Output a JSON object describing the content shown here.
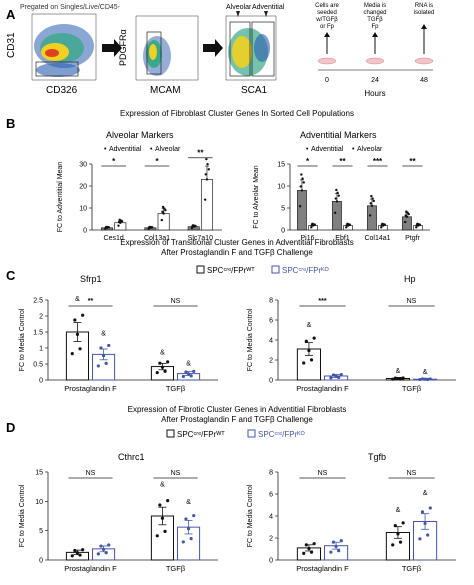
{
  "panels": {
    "a": {
      "letter": "A",
      "gating_label": "Pregated on Singles/Live/CD45-",
      "plot1": {
        "y": "CD31",
        "x": "CD326"
      },
      "plot2": {
        "y": "PDGFRα",
        "x": "MCAM"
      },
      "plot3": {
        "x": "SCA1",
        "gate_left": "Alveolar",
        "gate_right": "Adventitial"
      },
      "timeline": {
        "step1": [
          "Cells are",
          "seeded",
          "w/TGFβ",
          "or Fp"
        ],
        "step2": [
          "Media is",
          "changed",
          "TGFβ",
          "Fp"
        ],
        "step3": [
          "RNA is",
          "isolated"
        ],
        "ticks": [
          "0",
          "24",
          "48"
        ],
        "axis_label": "Hours"
      }
    },
    "b": {
      "letter": "B",
      "title": "Expression of Fibroblast Cluster Genes In Sorted Cell Populations"
    },
    "c": {
      "letter": "C",
      "title": [
        "Expression of Transitional Cluster Genes in Adventitial Fibroblasts",
        "After  Prostaglandin F and TGFβ Challenge"
      ],
      "legend_wt": "SPCᶜʳᵉ/FPrᵂᵀ",
      "legend_ko": "SPCᶜʳᵉ/FPrᴷᴼ"
    },
    "d": {
      "letter": "D",
      "title": [
        "Expression of Fibrotic Cluster Genes in Adventitial Fibroblasts",
        "After  Prostaglandin F and TGFβ Challenge"
      ],
      "legend_wt": "SPCᶜʳᵉ/FPrᵂᵀ",
      "legend_ko": "SPCᶜʳᵉ/FPrᴷᴼ"
    }
  },
  "colors": {
    "dark_bar": "#808080",
    "wt": "#111111",
    "ko": "#4455aa"
  },
  "chart_data": [
    {
      "id": "b-left",
      "type": "bar",
      "title": "Alveolar Markers",
      "ylabel": "FC to Adventitial Mean",
      "categories": [
        "Ces1d",
        "Col13a1",
        "Slc7a10"
      ],
      "ylim": [
        0,
        30
      ],
      "yticks": [
        0,
        10,
        20,
        30
      ],
      "series": [
        {
          "name": "Adventitial",
          "values": [
            1,
            1,
            1.5
          ]
        },
        {
          "name": "Alveolar",
          "values": [
            3.3,
            7.5,
            23
          ]
        }
      ],
      "sig": [
        "*",
        "*",
        "**"
      ]
    },
    {
      "id": "b-right",
      "type": "bar",
      "title": "Adventitial Markers",
      "ylabel": "FC to Alveolar Mean",
      "categories": [
        "Pi16",
        "Ebf1",
        "Col14a1",
        "Ptgfr"
      ],
      "ylim": [
        0,
        15
      ],
      "yticks": [
        0,
        5,
        10,
        15
      ],
      "series": [
        {
          "name": "Adventitial",
          "values": [
            9,
            6.5,
            5.5,
            3
          ]
        },
        {
          "name": "Alveolar",
          "values": [
            1,
            1,
            1,
            1
          ]
        }
      ],
      "sig": [
        "*",
        "**",
        "***",
        "**"
      ]
    },
    {
      "id": "c-left",
      "type": "bar",
      "title": "Sfrp1",
      "ylabel": "FC to Media Control",
      "categories": [
        "Prostaglandin F",
        "TGFβ"
      ],
      "ylim": [
        0,
        2.5
      ],
      "yticks": [
        0,
        0.5,
        1,
        1.5,
        2,
        2.5
      ],
      "series": [
        {
          "name": "SPCᶜʳᵉ/FPrᵂᵀ",
          "values": [
            1.5,
            0.42
          ]
        },
        {
          "name": "SPCᶜʳᵉ/FPrᴷᴼ",
          "values": [
            0.8,
            0.2
          ]
        }
      ],
      "sig": [
        "**",
        "NS"
      ],
      "marks": [
        "&",
        "&",
        "&",
        "&"
      ]
    },
    {
      "id": "c-right",
      "type": "bar",
      "title": "Hp",
      "ylabel": "FC to Media Control",
      "categories": [
        "Prostaglandin F",
        "TGFβ"
      ],
      "ylim": [
        0,
        8
      ],
      "yticks": [
        0,
        2,
        4,
        6,
        8
      ],
      "series": [
        {
          "name": "SPCᶜʳᵉ/FPrᵂᵀ",
          "values": [
            3.1,
            0.15
          ]
        },
        {
          "name": "SPCᶜʳᵉ/FPrᴷᴼ",
          "values": [
            0.4,
            0.08
          ]
        }
      ],
      "sig": [
        "***",
        "NS"
      ],
      "marks": [
        "&",
        "",
        "&",
        "&"
      ]
    },
    {
      "id": "d-left",
      "type": "bar",
      "title": "Cthrc1",
      "ylabel": "FC to Media Control",
      "categories": [
        "Prostaglandin F",
        "TGFβ"
      ],
      "ylim": [
        0,
        15
      ],
      "yticks": [
        0,
        5,
        10,
        15
      ],
      "series": [
        {
          "name": "SPCᶜʳᵉ/FPrᵂᵀ",
          "values": [
            1.3,
            7.5
          ]
        },
        {
          "name": "SPCᶜʳᵉ/FPrᴷᴼ",
          "values": [
            1.9,
            5.6
          ]
        }
      ],
      "sig": [
        "NS",
        "NS"
      ],
      "marks": [
        "",
        "",
        "&",
        "&"
      ]
    },
    {
      "id": "d-right",
      "type": "bar",
      "title": "Tgfb",
      "ylabel": "FC to Media Control",
      "categories": [
        "Prostaglandin F",
        "TGFβ"
      ],
      "ylim": [
        0,
        8
      ],
      "yticks": [
        0,
        2,
        4,
        6,
        8
      ],
      "series": [
        {
          "name": "SPCᶜʳᵉ/FPrᵂᵀ",
          "values": [
            1.1,
            2.5
          ]
        },
        {
          "name": "SPCᶜʳᵉ/FPrᴷᴼ",
          "values": [
            1.3,
            3.5
          ]
        }
      ],
      "sig": [
        "NS",
        "NS"
      ],
      "marks": [
        "",
        "",
        "&",
        "&"
      ]
    }
  ]
}
